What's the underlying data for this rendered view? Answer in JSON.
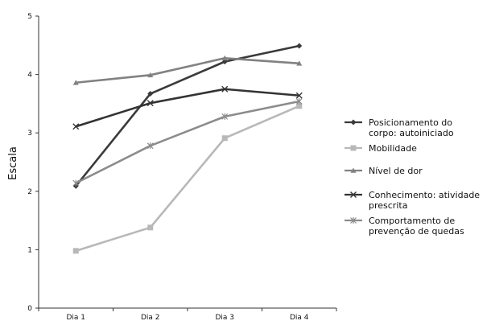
{
  "chart_data": {
    "type": "line",
    "title": "",
    "xlabel": "",
    "ylabel": "Escala",
    "categories": [
      "Dia 1",
      "Dia 2",
      "Dia 3",
      "Dia 4"
    ],
    "ylim": [
      0,
      5
    ],
    "yticks": [
      0,
      1,
      2,
      3,
      4,
      5
    ],
    "grid": false,
    "legend_position": "right",
    "series": [
      {
        "name": "Posicionamento do corpo: autoiniciado",
        "legend_lines": [
          "Posicionamento do",
          "corpo: autoiniciado"
        ],
        "values": [
          2.09,
          3.67,
          4.22,
          4.49
        ],
        "color": "#3a3a3a",
        "marker": "diamond"
      },
      {
        "name": "Mobilidade",
        "legend_lines": [
          "Mobilidade"
        ],
        "values": [
          0.98,
          1.38,
          2.91,
          3.46
        ],
        "color": "#b8b8b8",
        "marker": "square"
      },
      {
        "name": "Nível de dor",
        "legend_lines": [
          "Nível de dor"
        ],
        "values": [
          3.86,
          3.99,
          4.28,
          4.19
        ],
        "color": "#828282",
        "marker": "triangle"
      },
      {
        "name": "Conhecimento: atividade prescrita",
        "legend_lines": [
          "Conhecimento: atividade",
          "prescrita"
        ],
        "values": [
          3.11,
          3.51,
          3.75,
          3.64
        ],
        "color": "#333333",
        "marker": "x"
      },
      {
        "name": "Comportamento de prevenção de quedas",
        "legend_lines": [
          "Comportamento de",
          "prevenção de quedas"
        ],
        "values": [
          2.14,
          2.78,
          3.28,
          3.54
        ],
        "color": "#8c8c8c",
        "marker": "asterisk"
      }
    ]
  }
}
